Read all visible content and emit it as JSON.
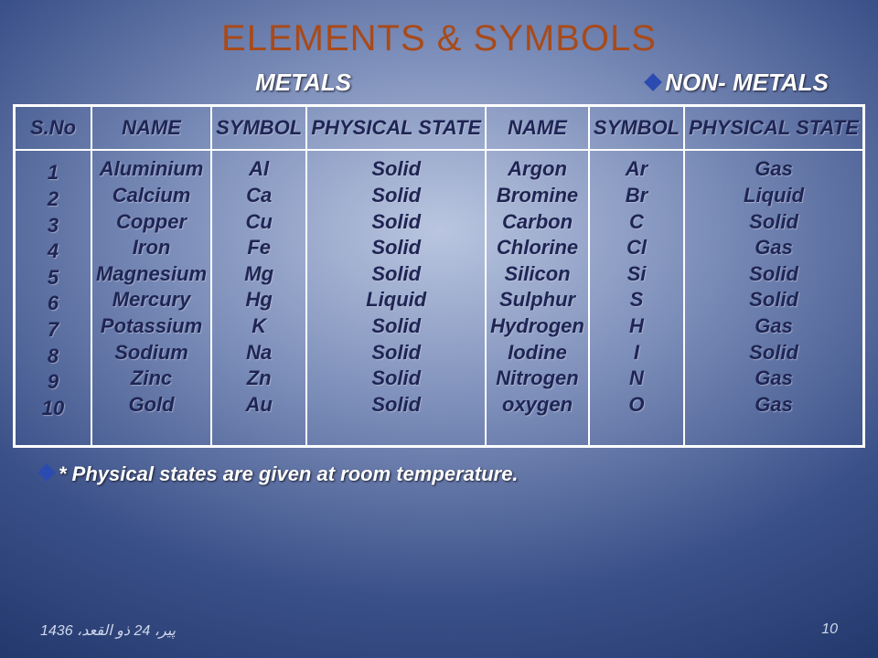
{
  "colors": {
    "title_color": "#a84a1a",
    "text_dark": "#1e2554",
    "bullet_fill": "#2b4bb0",
    "border": "#ffffff"
  },
  "typography": {
    "title_fontsize": 40,
    "header_fontsize": 26,
    "cell_fontsize": 22,
    "footer_fontsize": 16,
    "font_family": "Verdana",
    "italic": true,
    "bold": true
  },
  "title": "ELEMENTS & SYMBOLS",
  "sections": {
    "metals": "METALS",
    "nonmetals": "NON- METALS"
  },
  "table": {
    "columns": [
      "S.No",
      "NAME",
      "SYMBOL",
      "PHYSICAL STATE",
      "NAME",
      "SYMBOL",
      "PHYSICAL STATE"
    ],
    "sno": [
      "1",
      "2",
      "3",
      "4",
      "5",
      "6",
      "7",
      "8",
      "9",
      "10"
    ],
    "metals_name": [
      "Aluminium",
      "Calcium",
      "Copper",
      "Iron",
      "Magnesium",
      "Mercury",
      "Potassium",
      "Sodium",
      "Zinc",
      "Gold"
    ],
    "metals_symbol": [
      "Al",
      "Ca",
      "Cu",
      "Fe",
      "Mg",
      "Hg",
      "K",
      "Na",
      "Zn",
      "Au"
    ],
    "metals_state": [
      "Solid",
      "Solid",
      "Solid",
      "Solid",
      "Solid",
      "Liquid",
      "Solid",
      "Solid",
      "Solid",
      "Solid"
    ],
    "nonmetals_name": [
      "Argon",
      "Bromine",
      "Carbon",
      "Chlorine",
      "Silicon",
      "Sulphur",
      "Hydrogen",
      "Iodine",
      "Nitrogen",
      "oxygen"
    ],
    "nonmetals_symbol": [
      "Ar",
      "Br",
      "C",
      "Cl",
      "Si",
      "S",
      "H",
      "I",
      "N",
      "O"
    ],
    "nonmetals_state": [
      "Gas",
      "Liquid",
      "Solid",
      "Gas",
      "Solid",
      "Solid",
      "Gas",
      "Solid",
      "Gas",
      "Gas"
    ]
  },
  "footnote": "* Physical states are given at room temperature.",
  "footer": {
    "date": "پير، 24 ذو القعد، 1436",
    "page": "10"
  }
}
